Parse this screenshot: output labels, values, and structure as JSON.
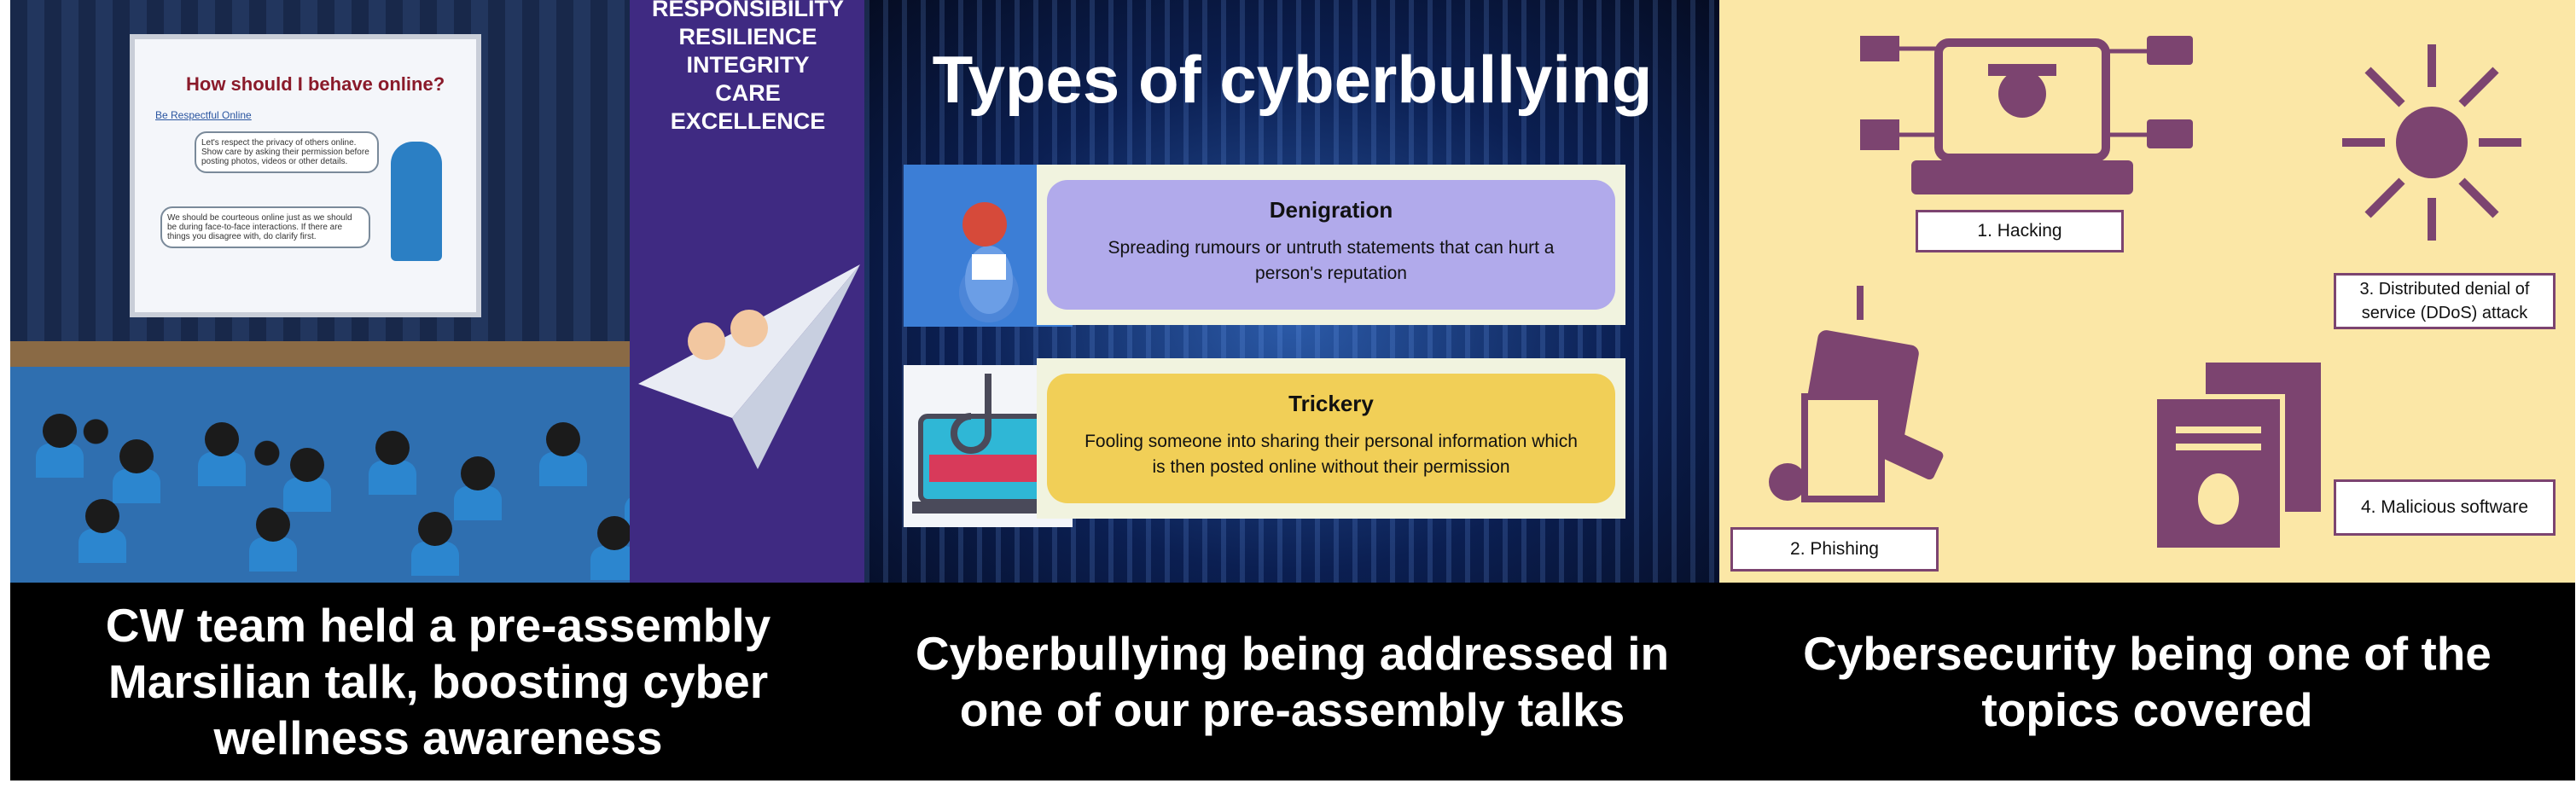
{
  "panel1": {
    "slide": {
      "title": "How should I behave online?",
      "subtitle": "Be Respectful Online",
      "bubble1": "Let's respect the privacy of others online. Show care by asking their permission before posting photos, videos or other details.",
      "bubble2": "We should be courteous online just as we should be during face-to-face interactions. If there are things you disagree with, do clarify first."
    },
    "values": [
      "RESPONSIBILITY",
      "RESILIENCE",
      "INTEGRITY",
      "CARE",
      "EXCELLENCE"
    ],
    "caption": "CW team held a pre-assembly Marsilian talk, boosting cyber wellness awareness"
  },
  "panel2": {
    "title": "Types of cyberbullying",
    "cards": [
      {
        "heading": "Denigration",
        "text": "Spreading rumours or untruth statements that can hurt a person's reputation",
        "color": "#b1aaeb"
      },
      {
        "heading": "Trickery",
        "text": "Fooling someone into sharing their personal information which is then posted online without their permission",
        "color": "#f1cf57"
      }
    ],
    "caption": "Cyberbullying being addressed in one of our pre-assembly talks"
  },
  "panel3": {
    "labels": [
      "1. Hacking",
      "2. Phishing",
      "3. Distributed denial of service (DDoS) attack",
      "4. Malicious software"
    ],
    "icon_color": "#7c4470",
    "caption": "Cybersecurity being one of the topics covered"
  }
}
